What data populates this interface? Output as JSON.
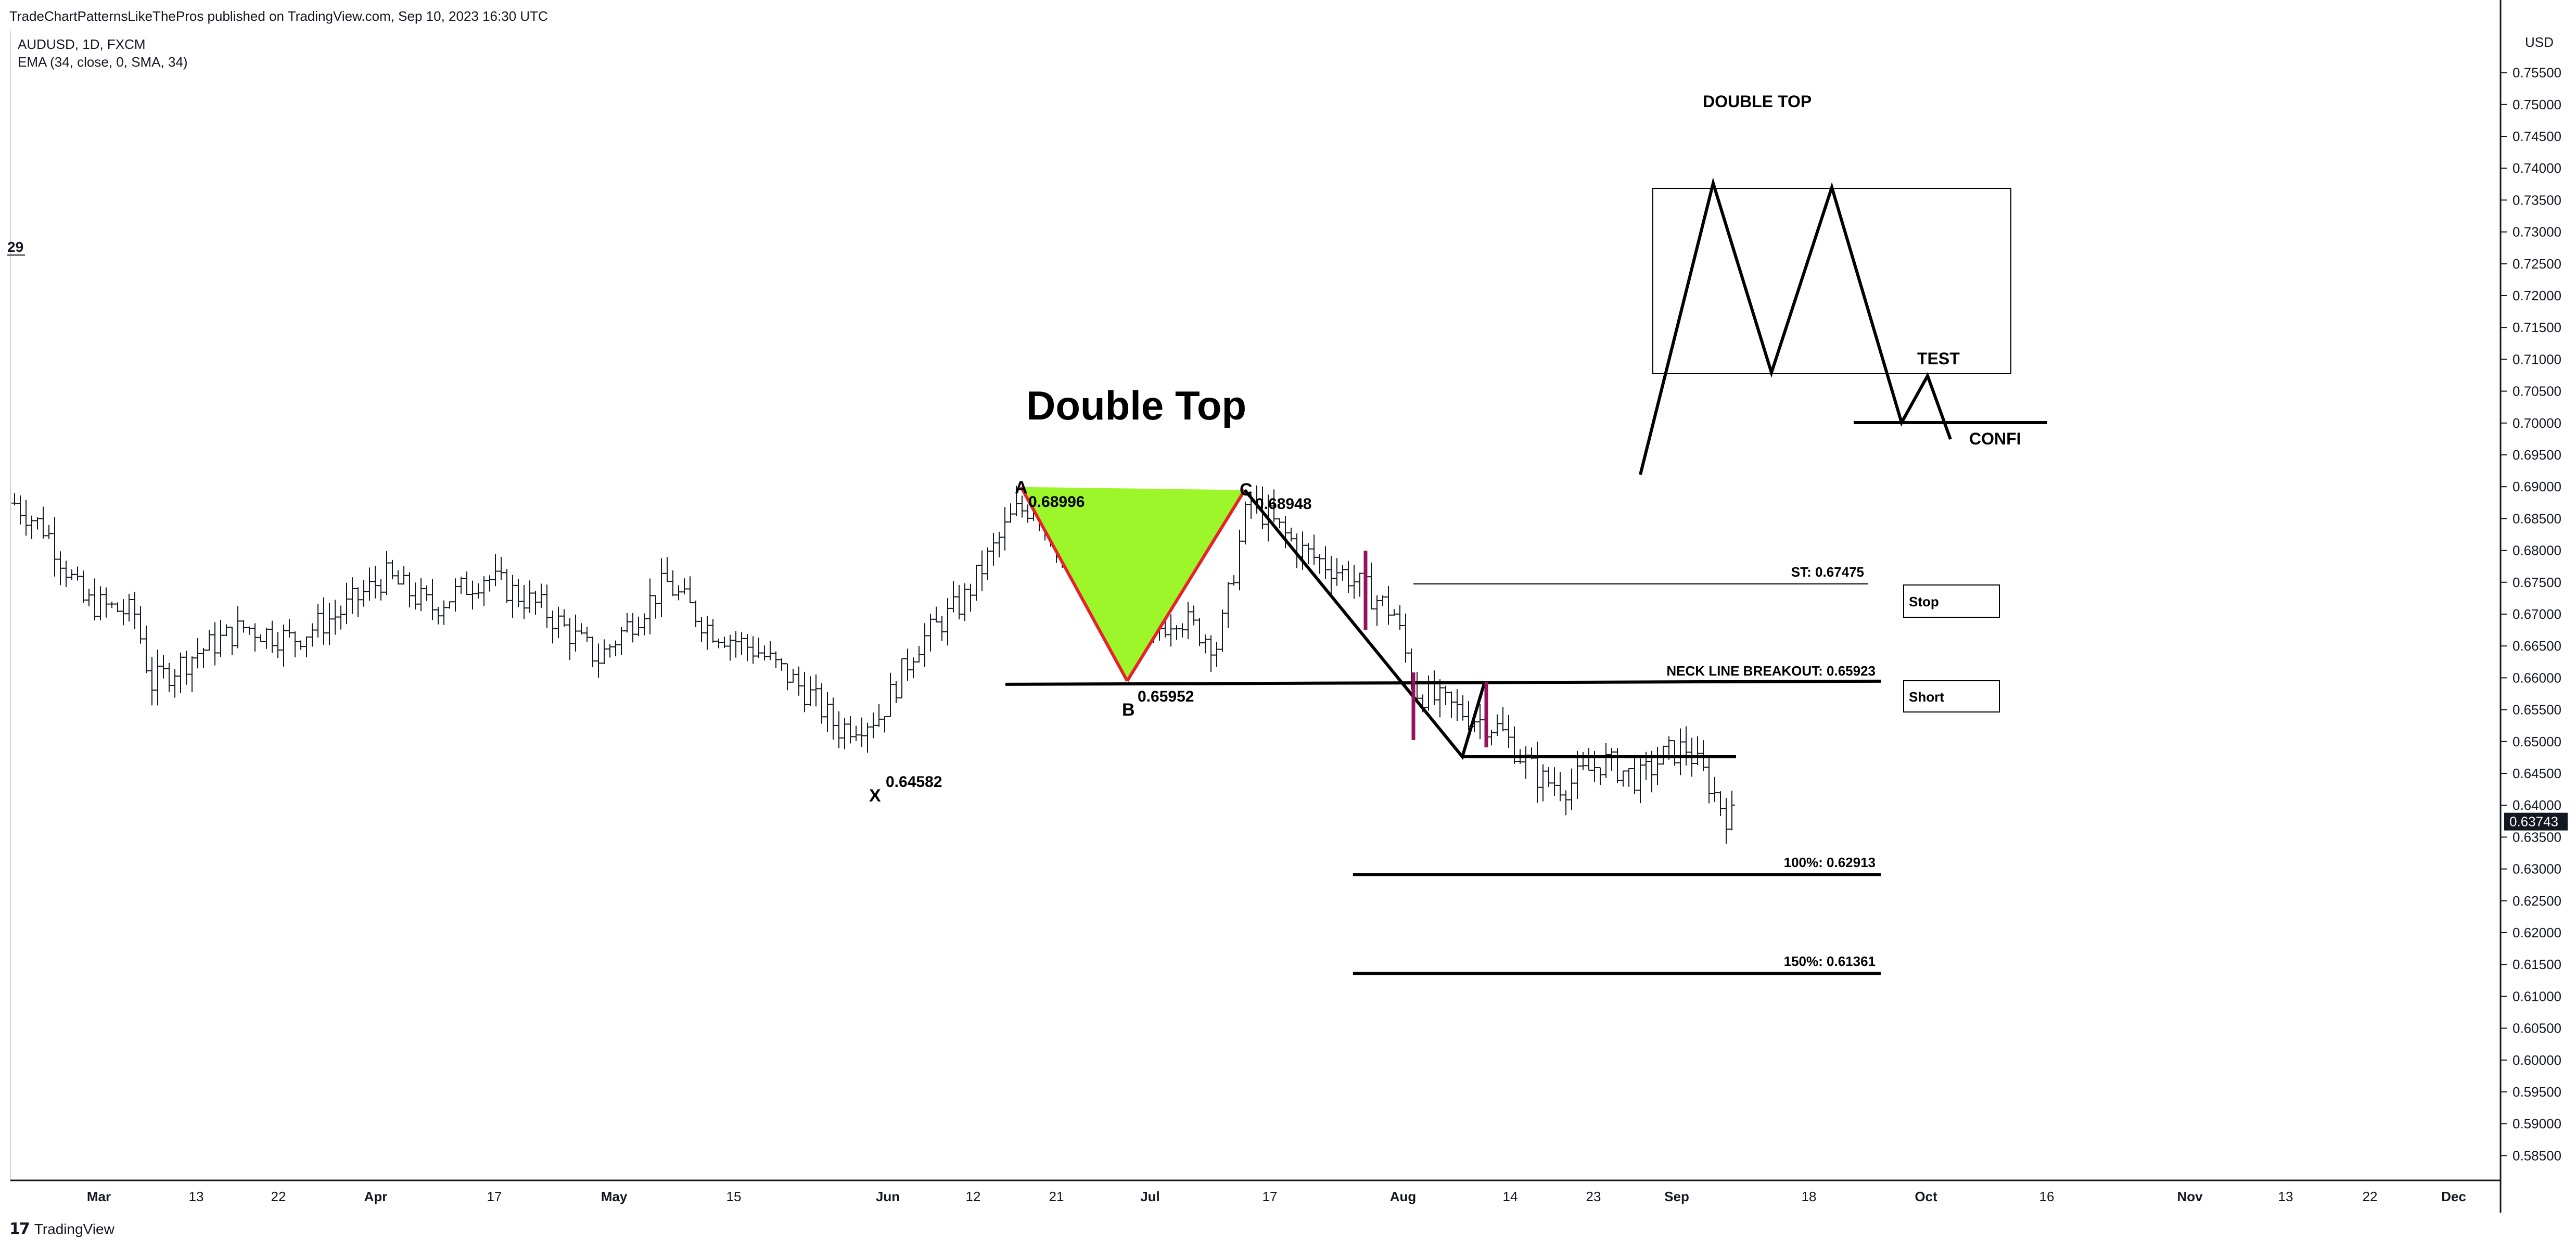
{
  "header": {
    "publisher_line": "TradeChartPatternsLikeThePros published on TradingView.com, Sep 10, 2023 16:30 UTC",
    "symbol_line": "AUDUSD, 1D, FXCM",
    "indicator_line": "EMA (34, close, 0, SMA, 34)",
    "edge_value": "29"
  },
  "price_axis": {
    "currency": "USD",
    "last_price_label": "0.63743",
    "tick_labels": [
      "0.75500",
      "0.75000",
      "0.74500",
      "0.74000",
      "0.73500",
      "0.73000",
      "0.72500",
      "0.72000",
      "0.71500",
      "0.71000",
      "0.70500",
      "0.70000",
      "0.69500",
      "0.69000",
      "0.68500",
      "0.68000",
      "0.67500",
      "0.67000",
      "0.66500",
      "0.66000",
      "0.65500",
      "0.65000",
      "0.64500",
      "0.64000",
      "0.63500",
      "0.63000",
      "0.62500",
      "0.62000",
      "0.61500",
      "0.61000",
      "0.60500",
      "0.60000",
      "0.59500",
      "0.59000",
      "0.58500"
    ]
  },
  "time_axis": {
    "tick_labels": [
      "Mar",
      "13",
      "22",
      "Apr",
      "17",
      "May",
      "15",
      "Jun",
      "12",
      "21",
      "Jul",
      "17",
      "Aug",
      "14",
      "23",
      "Sep",
      "18",
      "Oct",
      "16",
      "Nov",
      "13",
      "22",
      "Dec"
    ]
  },
  "footer": {
    "brand": "TradingView"
  },
  "colors": {
    "background": "#ffffff",
    "bars": "#131722",
    "triangle_fill": "#9cf62a",
    "triangle_edge": "#e8202a",
    "magenta_marks": "#990f5a",
    "lines": "#000000",
    "last_price_tag": "#131722"
  },
  "chart_data": {
    "type": "ohlc",
    "symbol": "AUDUSD",
    "timeframe": "1D",
    "y_axis": {
      "ylim": [
        0.583,
        0.7575
      ],
      "position": "right",
      "grid": false
    },
    "approx_close_path": [
      {
        "x": "Feb",
        "y": 0.688
      },
      {
        "x": "Mar",
        "y": 0.673
      },
      {
        "x": "Mar",
        "y": 0.66
      },
      {
        "x": "13",
        "y": 0.665
      },
      {
        "x": "22",
        "y": 0.669
      },
      {
        "x": "Apr",
        "y": 0.677
      },
      {
        "x": "17",
        "y": 0.674
      },
      {
        "x": "May",
        "y": 0.672
      },
      {
        "x": "15",
        "y": 0.665
      },
      {
        "x": "Jun",
        "y": 0.652
      },
      {
        "x": "Jun",
        "y": 0.66
      },
      {
        "x": "12",
        "y": 0.675
      },
      {
        "x": "21",
        "y": 0.687
      },
      {
        "x": "Jul",
        "y": 0.662
      },
      {
        "x": "17",
        "y": 0.686
      },
      {
        "x": "Aug",
        "y": 0.67
      },
      {
        "x": "Aug",
        "y": 0.656
      },
      {
        "x": "14",
        "y": 0.648
      },
      {
        "x": "23",
        "y": 0.644
      },
      {
        "x": "Sep",
        "y": 0.649
      },
      {
        "x": "Sep",
        "y": 0.6374
      }
    ],
    "pattern_title": "Double Top",
    "points": [
      {
        "name": "X",
        "price_label": "0.64582"
      },
      {
        "name": "A",
        "price_label": "0.68996"
      },
      {
        "name": "B",
        "price_label": "0.65952"
      },
      {
        "name": "C",
        "price_label": "0.68948"
      }
    ],
    "levels": [
      {
        "label": "ST: 0.67475",
        "price": 0.67475
      },
      {
        "label": "NECK LINE BREAKOUT: 0.65923",
        "price": 0.65923
      },
      {
        "label": "100%: 0.62913",
        "price": 0.62913
      },
      {
        "label": "150%: 0.61361",
        "price": 0.61361
      }
    ],
    "boxes": [
      "Stop",
      "Short"
    ],
    "schematic": {
      "title": "DOUBLE TOP",
      "test_label": "TEST",
      "confirm_label": "CONFI"
    }
  }
}
